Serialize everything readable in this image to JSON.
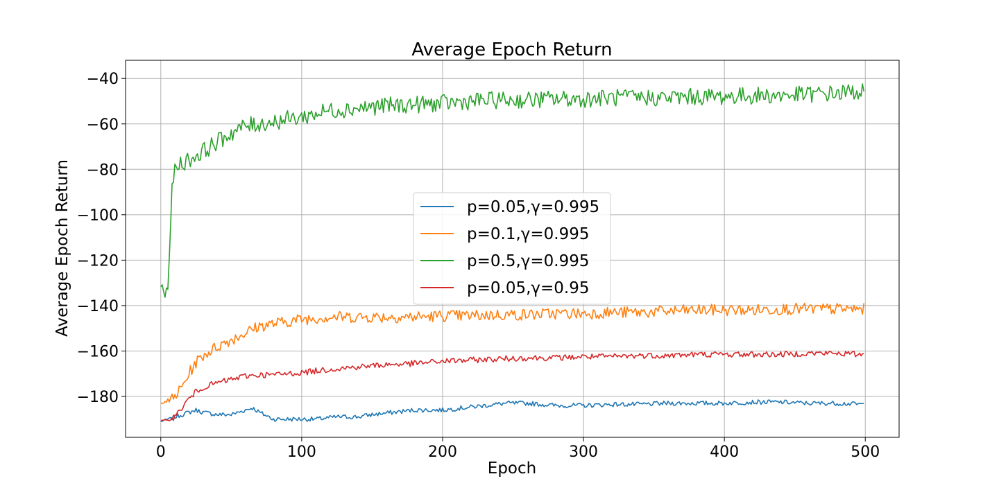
{
  "chart_data": {
    "type": "line",
    "title": "Average Epoch Return",
    "xlabel": "Epoch",
    "ylabel": "Average Epoch Return",
    "xlim": [
      -25,
      524
    ],
    "ylim": [
      -198,
      -32
    ],
    "x_ticks": [
      0,
      100,
      200,
      300,
      400,
      500
    ],
    "x_tick_labels": [
      "0",
      "100",
      "200",
      "300",
      "400",
      "500"
    ],
    "y_ticks": [
      -180,
      -160,
      -140,
      -120,
      -100,
      -80,
      -60,
      -40
    ],
    "y_tick_labels": [
      "−180",
      "−160",
      "−140",
      "−120",
      "−100",
      "−80",
      "−60",
      "−40"
    ],
    "grid": true,
    "legend_position": "center",
    "legend": [
      {
        "key": "s1",
        "label": "p=0.05,γ=0.995"
      },
      {
        "key": "s2",
        "label": "p=0.1,γ=0.995"
      },
      {
        "key": "s3",
        "label": "p=0.5,γ=0.995"
      },
      {
        "key": "s4",
        "label": "p=0.05,γ=0.95"
      }
    ],
    "series": [
      {
        "key": "s1",
        "color": "#1f77b4",
        "x": [
          0,
          5,
          10,
          15,
          20,
          25,
          30,
          40,
          50,
          60,
          65,
          70,
          80,
          90,
          100,
          110,
          125,
          140,
          150,
          165,
          180,
          195,
          200,
          215,
          230,
          245,
          260,
          280,
          300,
          320,
          340,
          360,
          380,
          400,
          420,
          440,
          460,
          480,
          499
        ],
        "y": [
          -191,
          -190,
          -189,
          -188,
          -187,
          -186,
          -187,
          -188,
          -188,
          -186,
          -185,
          -187,
          -190,
          -190,
          -190,
          -190,
          -189,
          -189,
          -188,
          -187,
          -186,
          -186,
          -186,
          -185,
          -184,
          -183,
          -183,
          -184,
          -184,
          -183.5,
          -183.5,
          -183,
          -183,
          -183,
          -182.5,
          -182.5,
          -183,
          -183,
          -183.5
        ]
      },
      {
        "key": "s2",
        "color": "#ff7f0e",
        "x": [
          0,
          3,
          6,
          10,
          15,
          20,
          25,
          30,
          40,
          50,
          60,
          70,
          80,
          90,
          100,
          120,
          140,
          160,
          180,
          200,
          220,
          240,
          260,
          280,
          300,
          320,
          340,
          360,
          380,
          400,
          420,
          440,
          460,
          480,
          499
        ],
        "y": [
          -182,
          -182,
          -182,
          -180,
          -176,
          -170,
          -165,
          -162,
          -158,
          -155,
          -152,
          -149,
          -148,
          -147,
          -146,
          -145,
          -145,
          -145,
          -145,
          -144.5,
          -144.5,
          -144,
          -144,
          -143.5,
          -143.5,
          -143,
          -143,
          -142.5,
          -142,
          -142,
          -142,
          -141.5,
          -141.5,
          -141.5,
          -141.5
        ]
      },
      {
        "key": "s3",
        "color": "#2ca02c",
        "x": [
          0,
          3,
          5,
          6,
          8,
          10,
          12,
          15,
          20,
          25,
          30,
          40,
          50,
          60,
          70,
          80,
          90,
          100,
          120,
          140,
          160,
          180,
          200,
          220,
          240,
          260,
          280,
          300,
          320,
          340,
          360,
          380,
          400,
          420,
          440,
          460,
          480,
          499
        ],
        "y": [
          -131,
          -135,
          -132,
          -118,
          -90,
          -80,
          -78,
          -77,
          -76,
          -74,
          -72,
          -68,
          -64,
          -61,
          -60,
          -59,
          -58,
          -57,
          -54,
          -53,
          -52,
          -51.5,
          -51,
          -50,
          -49.5,
          -49.5,
          -49,
          -49,
          -48.5,
          -48.5,
          -48.5,
          -48,
          -48,
          -47.5,
          -47.5,
          -47,
          -46.5,
          -45.5
        ]
      },
      {
        "key": "s4",
        "color": "#d62728",
        "x": [
          0,
          5,
          10,
          15,
          20,
          25,
          30,
          40,
          50,
          60,
          70,
          80,
          90,
          100,
          120,
          140,
          160,
          180,
          200,
          220,
          240,
          260,
          280,
          300,
          320,
          340,
          360,
          380,
          400,
          420,
          440,
          460,
          480,
          499
        ],
        "y": [
          -191,
          -190.5,
          -189,
          -185,
          -181,
          -178,
          -176,
          -174,
          -172.5,
          -171,
          -170.5,
          -170.5,
          -170,
          -169.5,
          -168,
          -167,
          -166,
          -165.5,
          -164.5,
          -164,
          -163.5,
          -163,
          -163,
          -162.5,
          -162.5,
          -162,
          -162,
          -161.5,
          -161.5,
          -161.5,
          -161.5,
          -161,
          -161,
          -161.5
        ]
      }
    ]
  }
}
